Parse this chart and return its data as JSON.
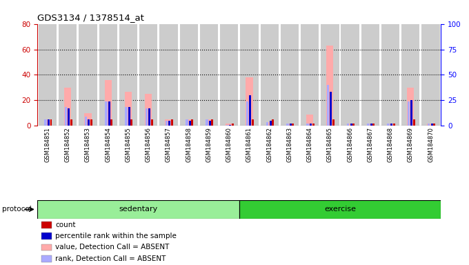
{
  "title": "GDS3134 / 1378514_at",
  "samples": [
    "GSM184851",
    "GSM184852",
    "GSM184853",
    "GSM184854",
    "GSM184855",
    "GSM184856",
    "GSM184857",
    "GSM184858",
    "GSM184859",
    "GSM184860",
    "GSM184861",
    "GSM184862",
    "GSM184863",
    "GSM184864",
    "GSM184865",
    "GSM184866",
    "GSM184867",
    "GSM184868",
    "GSM184869",
    "GSM184870"
  ],
  "count_values": [
    5,
    5,
    5,
    5,
    5,
    5,
    5,
    5,
    5,
    2,
    5,
    5,
    2,
    2,
    5,
    2,
    2,
    2,
    5,
    2
  ],
  "rank_values": [
    5,
    14,
    5,
    19,
    15,
    14,
    4,
    4,
    4,
    1,
    24,
    4,
    2,
    2,
    27,
    2,
    2,
    2,
    20,
    2
  ],
  "absent_value_values": [
    5,
    30,
    10,
    36,
    27,
    25,
    5,
    5,
    5,
    2,
    38,
    3,
    2,
    9,
    63,
    2,
    2,
    2,
    30,
    2
  ],
  "absent_rank_values": [
    5,
    15,
    7,
    19,
    15,
    14,
    4,
    5,
    5,
    1,
    19,
    3,
    2,
    2,
    32,
    2,
    2,
    2,
    19,
    2
  ],
  "sedentary_count": 10,
  "exercise_count": 10,
  "protocol_label": "protocol",
  "sedentary_label": "sedentary",
  "exercise_label": "exercise",
  "ylim_left": [
    0,
    80
  ],
  "ylim_right": [
    0,
    100
  ],
  "yticks_left": [
    0,
    20,
    40,
    60,
    80
  ],
  "yticks_right": [
    0,
    25,
    50,
    75,
    100
  ],
  "color_count": "#cc0000",
  "color_rank": "#0000cc",
  "color_absent_value": "#ffaaaa",
  "color_absent_rank": "#aaaaff",
  "color_sedentary_bg": "#99ee99",
  "color_exercise_bg": "#33cc33",
  "color_bar_bg": "#cccccc",
  "legend_items": [
    {
      "label": "count",
      "color": "#cc0000"
    },
    {
      "label": "percentile rank within the sample",
      "color": "#0000cc"
    },
    {
      "label": "value, Detection Call = ABSENT",
      "color": "#ffaaaa"
    },
    {
      "label": "rank, Detection Call = ABSENT",
      "color": "#aaaaff"
    }
  ]
}
